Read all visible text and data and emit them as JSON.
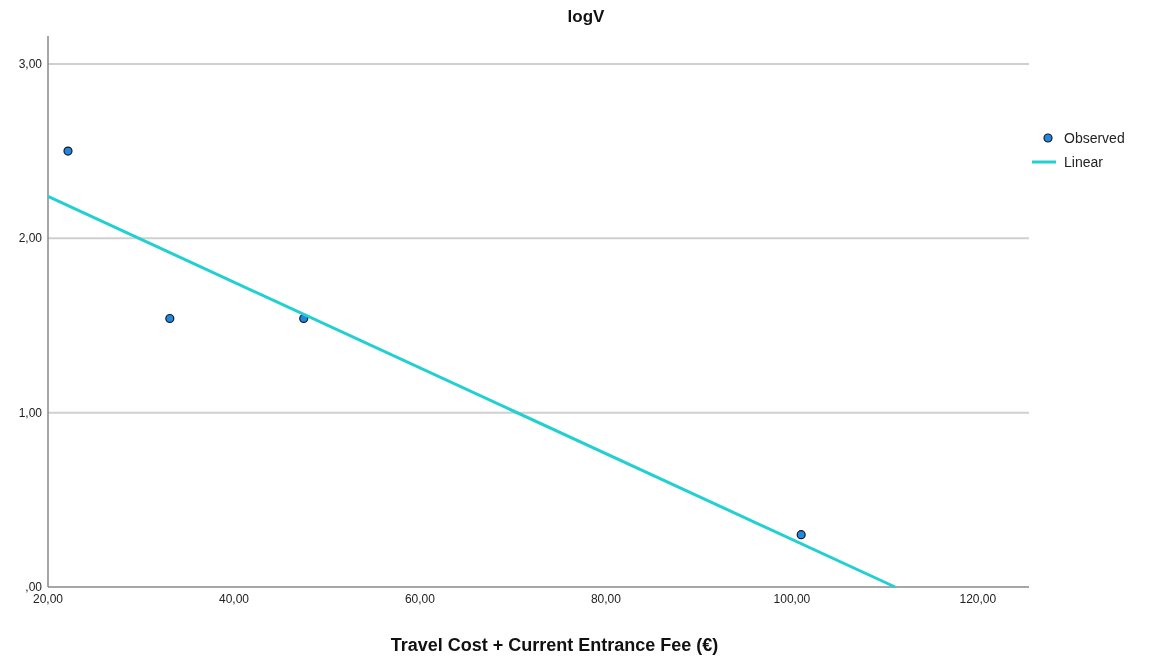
{
  "chart_data": {
    "type": "scatter",
    "title": "logV",
    "xlabel": "Travel Cost + Current Entrance Fee (€)",
    "xlim": [
      20,
      125.5
    ],
    "xticks": [
      {
        "value": 20,
        "label": "20,00"
      },
      {
        "value": 40,
        "label": "40,00"
      },
      {
        "value": 60,
        "label": "60,00"
      },
      {
        "value": 80,
        "label": "80,00"
      },
      {
        "value": 100,
        "label": "100,00"
      },
      {
        "value": 120,
        "label": "120,00"
      }
    ],
    "ylim": [
      0,
      3.16
    ],
    "yticks": [
      {
        "value": 0,
        "label": ",00"
      },
      {
        "value": 1,
        "label": "1,00"
      },
      {
        "value": 2,
        "label": "2,00"
      },
      {
        "value": 3,
        "label": "3,00"
      }
    ],
    "grid": "y",
    "legend": "top right",
    "series": [
      {
        "name": "Observed",
        "marker": "circle",
        "color": "#1f88e5",
        "x": [
          22.15,
          33.1,
          47.5,
          101.0
        ],
        "values": [
          2.5,
          1.54,
          1.54,
          0.3
        ]
      },
      {
        "name": "Linear",
        "type": "line",
        "marker": "none",
        "color": "#22cfd1",
        "x": [
          20,
          111.1
        ],
        "values": [
          2.24,
          0
        ]
      }
    ]
  }
}
